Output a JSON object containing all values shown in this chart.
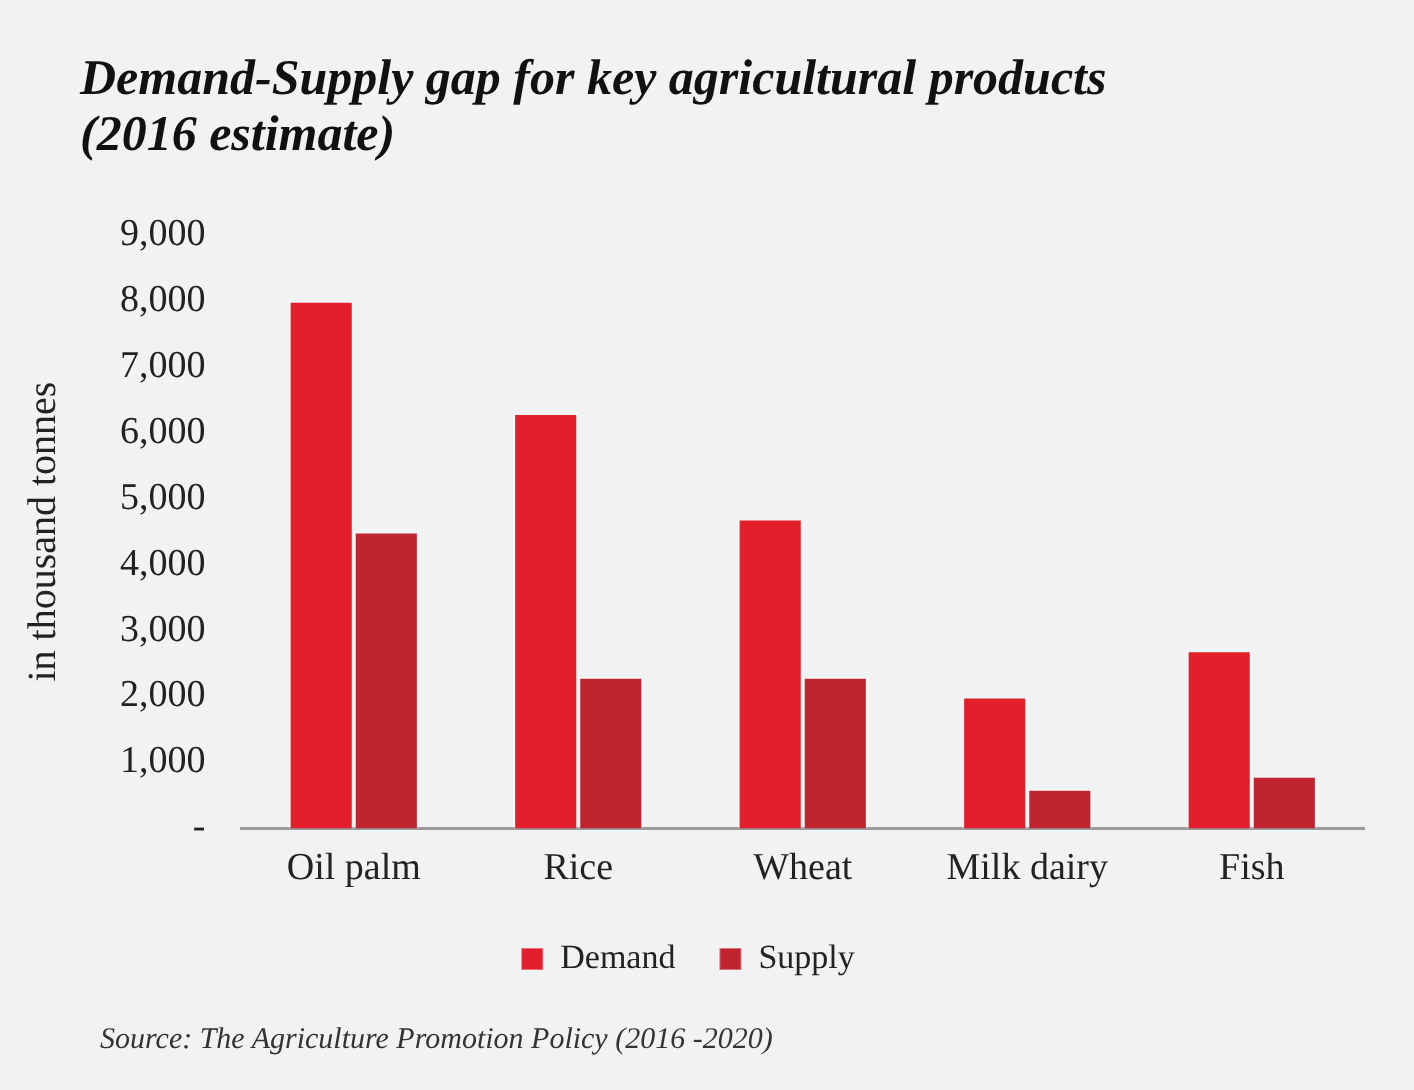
{
  "chart_data": {
    "type": "bar",
    "title": "Demand-Supply gap for key agricultural products (2016 estimate)",
    "ylabel": "in thousand tonnes",
    "categories": [
      "Oil palm",
      "Rice",
      "Wheat",
      "Milk dairy",
      "Fish"
    ],
    "series": [
      {
        "name": "Demand",
        "color": "#e21f2b",
        "values": [
          8000,
          6300,
          4700,
          2000,
          2700
        ]
      },
      {
        "name": "Supply",
        "color": "#c0242f",
        "values": [
          4500,
          2300,
          2300,
          600,
          800
        ]
      }
    ],
    "ylim": [
      0,
      9000
    ],
    "yticks": [
      {
        "value": 0,
        "label": "-"
      },
      {
        "value": 1000,
        "label": "1,000"
      },
      {
        "value": 2000,
        "label": "2,000"
      },
      {
        "value": 3000,
        "label": "3,000"
      },
      {
        "value": 4000,
        "label": "4,000"
      },
      {
        "value": 5000,
        "label": "5,000"
      },
      {
        "value": 6000,
        "label": "6,000"
      },
      {
        "value": 7000,
        "label": "7,000"
      },
      {
        "value": 8000,
        "label": "8,000"
      },
      {
        "value": 9000,
        "label": "9,000"
      }
    ],
    "grid": false,
    "legend": "bottom",
    "annotations": [
      "Source: The Agriculture Promotion Policy (2016 -2020)"
    ]
  }
}
